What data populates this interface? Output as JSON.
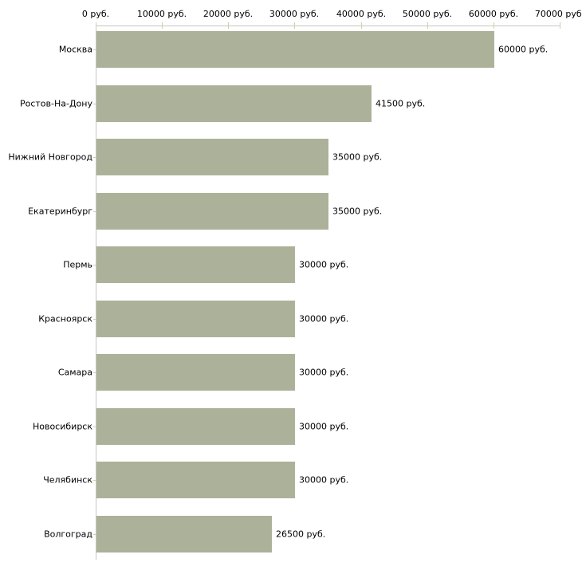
{
  "chart_data": {
    "type": "bar",
    "orientation": "horizontal",
    "title": "",
    "categories": [
      "Москва",
      "Ростов-На-Дону",
      "Нижний Новгород",
      "Екатеринбург",
      "Пермь",
      "Красноярск",
      "Самара",
      "Новосибирск",
      "Челябинск",
      "Волгоград"
    ],
    "values": [
      60000,
      41500,
      35000,
      35000,
      30000,
      30000,
      30000,
      30000,
      30000,
      26500
    ],
    "value_labels": [
      "60000 руб.",
      "41500 руб.",
      "35000 руб.",
      "35000 руб.",
      "30000 руб.",
      "30000 руб.",
      "30000 руб.",
      "30000 руб.",
      "30000 руб.",
      "26500 руб."
    ],
    "x_axis": {
      "min": 0,
      "max": 70000,
      "tick_step": 10000,
      "tick_values": [
        0,
        10000,
        20000,
        30000,
        40000,
        50000,
        60000,
        70000
      ],
      "tick_labels": [
        "0 руб.",
        "10000 руб.",
        "20000 руб.",
        "30000 руб.",
        "40000 руб.",
        "50000 руб.",
        "60000 руб.",
        "70000 руб."
      ],
      "position": "top"
    },
    "grid": false,
    "legend": false,
    "colors": {
      "bar": "#acb29a",
      "axis_line": "#c6c6c6",
      "tick_mark": "#ccd3a2",
      "text": "#000000",
      "background": "#ffffff"
    }
  }
}
